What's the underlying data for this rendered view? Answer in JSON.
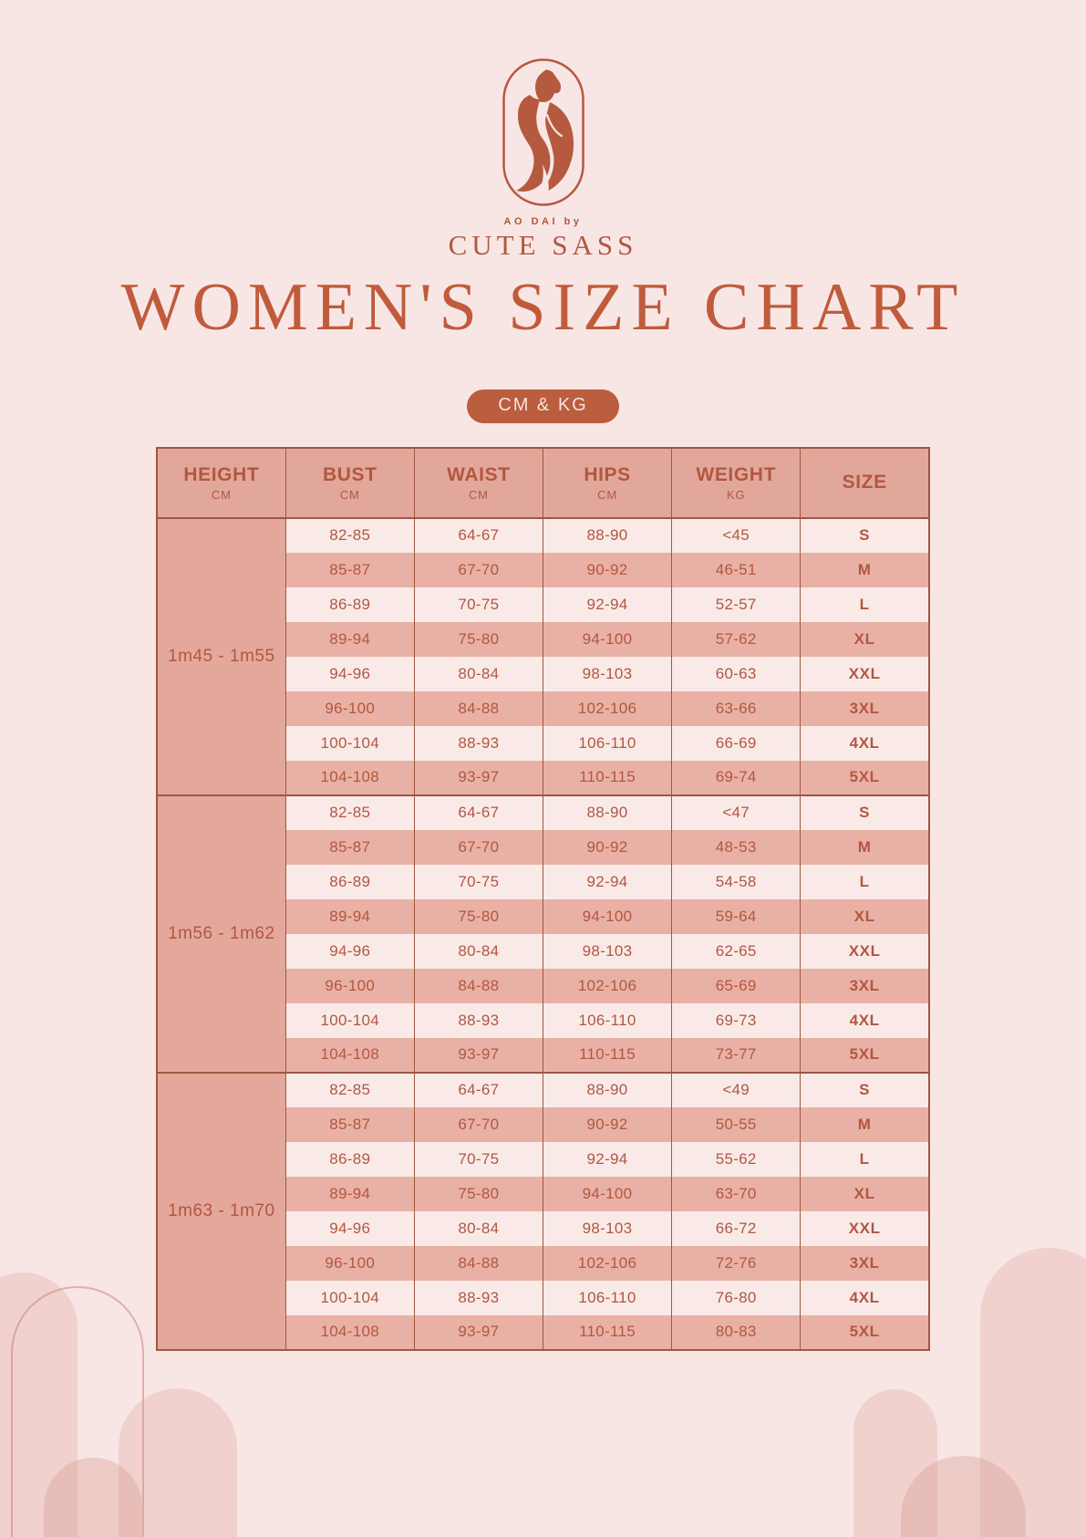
{
  "page": {
    "background": "#f8e6e5",
    "accent": "#bb5d3f",
    "text_color": "#b25740",
    "border_color": "#9e5742"
  },
  "brand": {
    "tagline": "AO DAI by",
    "name": "CUTE SASS",
    "logo_icon": "woman-in-ao-dai-icon"
  },
  "title": "WOMEN'S SIZE CHART",
  "units_badge": "CM & KG",
  "table": {
    "headers": [
      {
        "label": "HEIGHT",
        "unit": "CM"
      },
      {
        "label": "BUST",
        "unit": "CM"
      },
      {
        "label": "WAIST",
        "unit": "CM"
      },
      {
        "label": "HIPS",
        "unit": "CM"
      },
      {
        "label": "WEIGHT",
        "unit": "KG"
      },
      {
        "label": "SIZE",
        "unit": ""
      }
    ],
    "groups": [
      {
        "height": "1m45 - 1m55",
        "rows": [
          {
            "bust": "82-85",
            "waist": "64-67",
            "hips": "88-90",
            "weight": "<45",
            "size": "S"
          },
          {
            "bust": "85-87",
            "waist": "67-70",
            "hips": "90-92",
            "weight": "46-51",
            "size": "M"
          },
          {
            "bust": "86-89",
            "waist": "70-75",
            "hips": "92-94",
            "weight": "52-57",
            "size": "L"
          },
          {
            "bust": "89-94",
            "waist": "75-80",
            "hips": "94-100",
            "weight": "57-62",
            "size": "XL"
          },
          {
            "bust": "94-96",
            "waist": "80-84",
            "hips": "98-103",
            "weight": "60-63",
            "size": "XXL"
          },
          {
            "bust": "96-100",
            "waist": "84-88",
            "hips": "102-106",
            "weight": "63-66",
            "size": "3XL"
          },
          {
            "bust": "100-104",
            "waist": "88-93",
            "hips": "106-110",
            "weight": "66-69",
            "size": "4XL"
          },
          {
            "bust": "104-108",
            "waist": "93-97",
            "hips": "110-115",
            "weight": "69-74",
            "size": "5XL"
          }
        ]
      },
      {
        "height": "1m56 - 1m62",
        "rows": [
          {
            "bust": "82-85",
            "waist": "64-67",
            "hips": "88-90",
            "weight": "<47",
            "size": "S"
          },
          {
            "bust": "85-87",
            "waist": "67-70",
            "hips": "90-92",
            "weight": "48-53",
            "size": "M"
          },
          {
            "bust": "86-89",
            "waist": "70-75",
            "hips": "92-94",
            "weight": "54-58",
            "size": "L"
          },
          {
            "bust": "89-94",
            "waist": "75-80",
            "hips": "94-100",
            "weight": "59-64",
            "size": "XL"
          },
          {
            "bust": "94-96",
            "waist": "80-84",
            "hips": "98-103",
            "weight": "62-65",
            "size": "XXL"
          },
          {
            "bust": "96-100",
            "waist": "84-88",
            "hips": "102-106",
            "weight": "65-69",
            "size": "3XL"
          },
          {
            "bust": "100-104",
            "waist": "88-93",
            "hips": "106-110",
            "weight": "69-73",
            "size": "4XL"
          },
          {
            "bust": "104-108",
            "waist": "93-97",
            "hips": "110-115",
            "weight": "73-77",
            "size": "5XL"
          }
        ]
      },
      {
        "height": "1m63 - 1m70",
        "rows": [
          {
            "bust": "82-85",
            "waist": "64-67",
            "hips": "88-90",
            "weight": "<49",
            "size": "S"
          },
          {
            "bust": "85-87",
            "waist": "67-70",
            "hips": "90-92",
            "weight": "50-55",
            "size": "M"
          },
          {
            "bust": "86-89",
            "waist": "70-75",
            "hips": "92-94",
            "weight": "55-62",
            "size": "L"
          },
          {
            "bust": "89-94",
            "waist": "75-80",
            "hips": "94-100",
            "weight": "63-70",
            "size": "XL"
          },
          {
            "bust": "94-96",
            "waist": "80-84",
            "hips": "98-103",
            "weight": "66-72",
            "size": "XXL"
          },
          {
            "bust": "96-100",
            "waist": "84-88",
            "hips": "102-106",
            "weight": "72-76",
            "size": "3XL"
          },
          {
            "bust": "100-104",
            "waist": "88-93",
            "hips": "106-110",
            "weight": "76-80",
            "size": "4XL"
          },
          {
            "bust": "104-108",
            "waist": "93-97",
            "hips": "110-115",
            "weight": "80-83",
            "size": "5XL"
          }
        ]
      }
    ]
  }
}
